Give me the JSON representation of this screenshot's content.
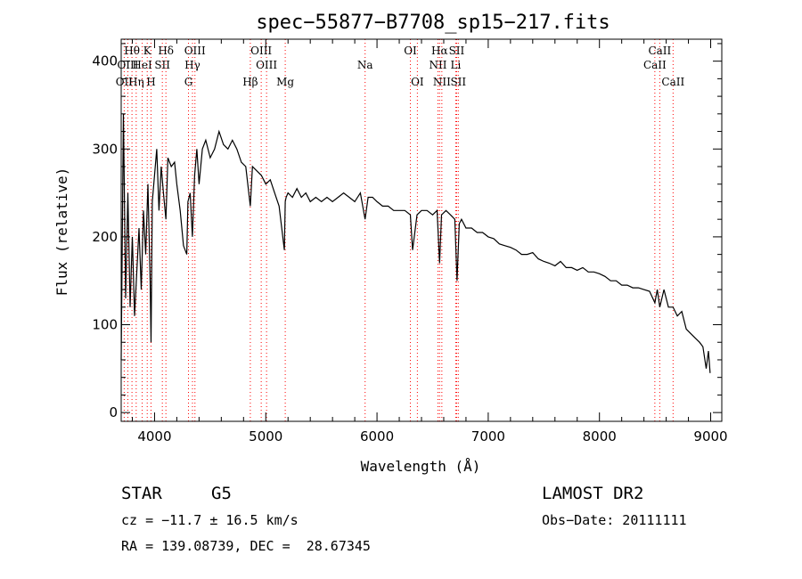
{
  "chart_data": {
    "type": "line",
    "title": "spec−55877−B7708_sp15−217.fits",
    "xlabel": "Wavelength (Å)",
    "ylabel": "Flux (relative)",
    "xlim": [
      3700,
      9100
    ],
    "ylim": [
      -10,
      425
    ],
    "xticks": [
      4000,
      5000,
      6000,
      7000,
      8000,
      9000
    ],
    "yticks": [
      0,
      100,
      200,
      300,
      400
    ],
    "series": [
      {
        "name": "flux",
        "x": [
          3700,
          3720,
          3740,
          3760,
          3780,
          3800,
          3820,
          3840,
          3860,
          3880,
          3900,
          3920,
          3940,
          3960,
          3968,
          3980,
          4000,
          4020,
          4040,
          4060,
          4080,
          4102,
          4120,
          4150,
          4180,
          4200,
          4230,
          4260,
          4290,
          4300,
          4320,
          4340,
          4360,
          4380,
          4400,
          4430,
          4460,
          4500,
          4540,
          4580,
          4620,
          4660,
          4700,
          4740,
          4780,
          4820,
          4861,
          4880,
          4920,
          4960,
          5000,
          5040,
          5080,
          5120,
          5167,
          5175,
          5183,
          5200,
          5240,
          5280,
          5320,
          5360,
          5400,
          5450,
          5500,
          5550,
          5600,
          5650,
          5700,
          5750,
          5800,
          5850,
          5893,
          5920,
          5960,
          6000,
          6050,
          6100,
          6150,
          6200,
          6250,
          6300,
          6320,
          6360,
          6400,
          6450,
          6500,
          6540,
          6563,
          6580,
          6620,
          6660,
          6700,
          6720,
          6740,
          6760,
          6800,
          6850,
          6900,
          6950,
          7000,
          7050,
          7100,
          7150,
          7200,
          7250,
          7300,
          7350,
          7400,
          7450,
          7500,
          7550,
          7600,
          7650,
          7700,
          7750,
          7800,
          7850,
          7900,
          7950,
          8000,
          8050,
          8100,
          8150,
          8200,
          8250,
          8300,
          8350,
          8400,
          8450,
          8498,
          8520,
          8542,
          8580,
          8620,
          8662,
          8700,
          8740,
          8780,
          8820,
          8860,
          8900,
          8930,
          8960,
          8980,
          8995
        ],
        "values": [
          60,
          340,
          130,
          250,
          120,
          200,
          110,
          160,
          210,
          140,
          230,
          180,
          260,
          150,
          80,
          240,
          270,
          300,
          230,
          280,
          250,
          220,
          290,
          280,
          285,
          260,
          230,
          190,
          180,
          240,
          250,
          200,
          270,
          300,
          260,
          300,
          310,
          290,
          300,
          320,
          305,
          300,
          310,
          300,
          285,
          280,
          235,
          280,
          275,
          270,
          260,
          265,
          250,
          235,
          185,
          240,
          245,
          250,
          245,
          255,
          245,
          250,
          240,
          245,
          240,
          245,
          240,
          245,
          250,
          245,
          240,
          250,
          220,
          245,
          245,
          240,
          235,
          235,
          230,
          230,
          230,
          225,
          185,
          225,
          230,
          230,
          225,
          230,
          170,
          225,
          230,
          225,
          220,
          150,
          215,
          220,
          210,
          210,
          205,
          205,
          200,
          198,
          192,
          190,
          188,
          185,
          180,
          180,
          182,
          175,
          172,
          170,
          167,
          172,
          165,
          165,
          162,
          165,
          160,
          160,
          158,
          155,
          150,
          150,
          145,
          145,
          142,
          142,
          140,
          138,
          125,
          140,
          120,
          140,
          120,
          120,
          110,
          115,
          95,
          90,
          85,
          80,
          75,
          50,
          70,
          45
        ]
      }
    ],
    "lines": [
      {
        "label": "OII",
        "wl": 3727,
        "row": 3
      },
      {
        "label": "Hθ",
        "wl": 3797,
        "row": 1
      },
      {
        "label": "OIII",
        "wl": 3760,
        "row": 2
      },
      {
        "label": "Hη",
        "wl": 3835,
        "row": 3
      },
      {
        "label": "HeI",
        "wl": 3889,
        "row": 2
      },
      {
        "label": "K",
        "wl": 3934,
        "row": 1
      },
      {
        "label": "H",
        "wl": 3968,
        "row": 3
      },
      {
        "label": "SII",
        "wl": 4070,
        "row": 2
      },
      {
        "label": "Hδ",
        "wl": 4102,
        "row": 1
      },
      {
        "label": "OIII",
        "wl": 4363,
        "row": 1
      },
      {
        "label": "Hγ",
        "wl": 4341,
        "row": 2
      },
      {
        "label": "G",
        "wl": 4305,
        "row": 3
      },
      {
        "label": "Hβ",
        "wl": 4861,
        "row": 3
      },
      {
        "label": "OIII",
        "wl": 4959,
        "row": 1
      },
      {
        "label": "OIII",
        "wl": 5007,
        "row": 2
      },
      {
        "label": "Mg",
        "wl": 5175,
        "row": 3
      },
      {
        "label": "Na",
        "wl": 5893,
        "row": 2
      },
      {
        "label": "OI",
        "wl": 6300,
        "row": 1
      },
      {
        "label": "OI",
        "wl": 6363,
        "row": 3
      },
      {
        "label": "Hα",
        "wl": 6563,
        "row": 1
      },
      {
        "label": "NII",
        "wl": 6548,
        "row": 2
      },
      {
        "label": "NII",
        "wl": 6583,
        "row": 3
      },
      {
        "label": "SII",
        "wl": 6716,
        "row": 1
      },
      {
        "label": "Li",
        "wl": 6708,
        "row": 2
      },
      {
        "label": "SII",
        "wl": 6731,
        "row": 3
      },
      {
        "label": "CaII",
        "wl": 8498,
        "row": 2
      },
      {
        "label": "CaII",
        "wl": 8542,
        "row": 1
      },
      {
        "label": "CaII",
        "wl": 8662,
        "row": 3
      }
    ],
    "line_color": "#ff0000",
    "spectrum_color": "#000000"
  },
  "info": {
    "object_class": "STAR",
    "subclass": "G5",
    "survey": "LAMOST DR2",
    "cz": "cz = −11.7 ± 16.5 km/s",
    "obs_date": "Obs−Date: 20111111",
    "coords": "RA = 139.08739, DEC =  28.67345"
  }
}
